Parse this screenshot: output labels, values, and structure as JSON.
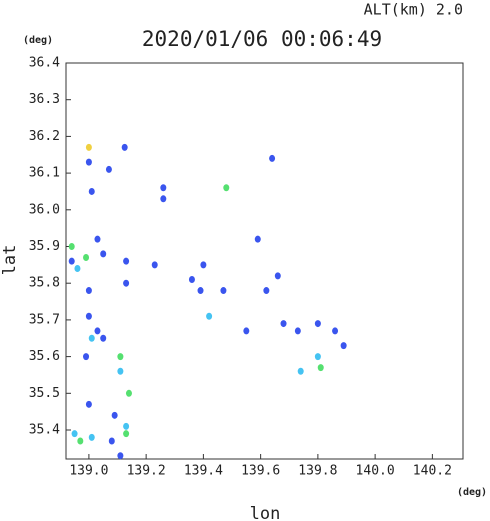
{
  "chart_data": {
    "type": "scatter",
    "title": "2020/01/06 00:06:49",
    "subtitle": "ALT(km) 2.0",
    "x_label": "lon",
    "y_label": "lat",
    "x_unit": "(deg)",
    "y_unit": "(deg)",
    "xlim": [
      138.92,
      140.307
    ],
    "ylim": [
      35.321,
      36.4
    ],
    "xticks": [
      {
        "value": 139,
        "label": "139.0"
      },
      139.2,
      139.4,
      139.6,
      139.8,
      {
        "value": 140,
        "label": "140.0"
      },
      140.2
    ],
    "yticks": [
      {
        "value": 36.4,
        "label": "36.4"
      },
      36.3,
      36.2,
      36.1,
      {
        "value": 36,
        "label": "36.0"
      },
      35.9,
      35.8,
      35.7,
      35.6,
      35.5,
      35.4
    ],
    "series": [
      {
        "color": "#3a55ee",
        "x": [
          139.0,
          139.125,
          139.07,
          139.01,
          139.26,
          139.26,
          138.94,
          139.03,
          139.05,
          139.13,
          139.13,
          139.23,
          139.0,
          139.0,
          139.03,
          139.05,
          138.99,
          139.0,
          139.09,
          139.08,
          139.11,
          139.39,
          139.36,
          139.59,
          139.66,
          139.64,
          139.4,
          139.47,
          139.55,
          139.62,
          139.73,
          139.86,
          139.89,
          139.68,
          139.8
        ],
        "y": [
          36.13,
          36.17,
          36.11,
          36.05,
          36.06,
          36.03,
          35.86,
          35.92,
          35.88,
          35.86,
          35.8,
          35.85,
          35.78,
          35.71,
          35.67,
          35.65,
          35.6,
          35.47,
          35.44,
          35.37,
          35.33,
          35.78,
          35.81,
          35.92,
          35.82,
          36.14,
          35.85,
          35.78,
          35.67,
          35.78,
          35.67,
          35.67,
          35.63,
          35.69,
          35.69
        ]
      },
      {
        "color": "#45c3f2",
        "x": [
          138.96,
          139.01,
          139.11,
          138.95,
          139.01,
          139.13,
          139.42,
          139.74,
          139.8
        ],
        "y": [
          35.84,
          35.65,
          35.56,
          35.39,
          35.38,
          35.41,
          35.71,
          35.56,
          35.6
        ]
      },
      {
        "color": "#55e070",
        "x": [
          138.94,
          138.99,
          139.11,
          139.14,
          138.97,
          139.13,
          139.81,
          139.48
        ],
        "y": [
          35.9,
          35.87,
          35.6,
          35.5,
          35.37,
          35.39,
          35.57,
          36.06
        ]
      },
      {
        "color": "#f0d040",
        "x": [
          139.0
        ],
        "y": [
          36.17
        ]
      }
    ]
  }
}
